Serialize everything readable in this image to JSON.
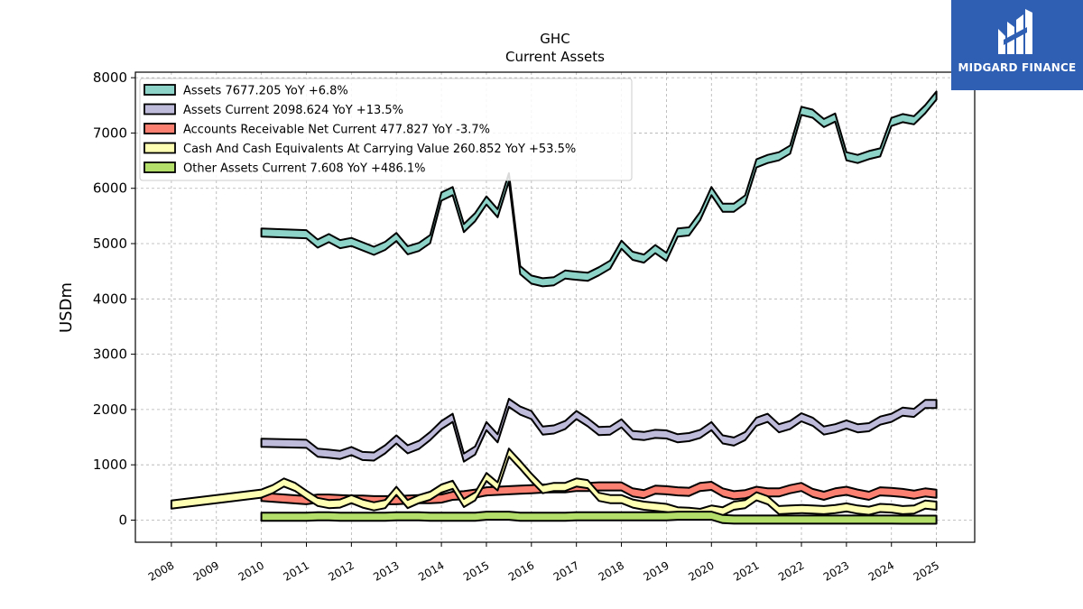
{
  "brand": {
    "name": "MIDGARD FINANCE",
    "logo_icon": "midgard-logo-icon",
    "color": "#2f5fb3"
  },
  "chart_data": {
    "type": "area",
    "title": "GHC",
    "subtitle": "Current  Assets",
    "ylabel": "USDm",
    "xlabel": "",
    "ylim": [
      -400,
      8100
    ],
    "xlim": [
      2007.2,
      2025.85
    ],
    "yticks": [
      0,
      1000,
      2000,
      3000,
      4000,
      5000,
      6000,
      7000,
      8000
    ],
    "xticks": [
      2008,
      2009,
      2010,
      2011,
      2012,
      2013,
      2014,
      2015,
      2016,
      2017,
      2018,
      2019,
      2020,
      2021,
      2022,
      2023,
      2024,
      2025
    ],
    "grid": true,
    "legend_position": "top-left",
    "series": [
      {
        "name": "Assets",
        "legend": "Assets  7677.205 YoY +6.8%",
        "color": "#8dd3c7",
        "points": [
          [
            2010.0,
            5200
          ],
          [
            2011.0,
            5170
          ],
          [
            2011.25,
            5000
          ],
          [
            2011.5,
            5100
          ],
          [
            2011.75,
            4990
          ],
          [
            2012.0,
            5030
          ],
          [
            2012.25,
            4950
          ],
          [
            2012.5,
            4870
          ],
          [
            2012.75,
            4960
          ],
          [
            2013.0,
            5120
          ],
          [
            2013.25,
            4880
          ],
          [
            2013.5,
            4940
          ],
          [
            2013.75,
            5080
          ],
          [
            2014.0,
            5850
          ],
          [
            2014.25,
            5950
          ],
          [
            2014.5,
            5280
          ],
          [
            2014.75,
            5480
          ],
          [
            2015.0,
            5780
          ],
          [
            2015.25,
            5550
          ],
          [
            2015.5,
            6200
          ],
          [
            2015.75,
            4520
          ],
          [
            2016.0,
            4350
          ],
          [
            2016.25,
            4300
          ],
          [
            2016.5,
            4320
          ],
          [
            2016.75,
            4440
          ],
          [
            2017.0,
            4420
          ],
          [
            2017.25,
            4400
          ],
          [
            2017.5,
            4500
          ],
          [
            2017.75,
            4620
          ],
          [
            2018.0,
            4980
          ],
          [
            2018.25,
            4780
          ],
          [
            2018.5,
            4730
          ],
          [
            2018.75,
            4900
          ],
          [
            2019.0,
            4760
          ],
          [
            2019.25,
            5200
          ],
          [
            2019.5,
            5220
          ],
          [
            2019.75,
            5500
          ],
          [
            2020.0,
            5950
          ],
          [
            2020.25,
            5650
          ],
          [
            2020.5,
            5650
          ],
          [
            2020.75,
            5800
          ],
          [
            2021.0,
            6450
          ],
          [
            2021.25,
            6530
          ],
          [
            2021.5,
            6580
          ],
          [
            2021.75,
            6700
          ],
          [
            2022.0,
            7400
          ],
          [
            2022.25,
            7350
          ],
          [
            2022.5,
            7180
          ],
          [
            2022.75,
            7280
          ],
          [
            2023.0,
            6580
          ],
          [
            2023.25,
            6530
          ],
          [
            2023.5,
            6600
          ],
          [
            2023.75,
            6650
          ],
          [
            2024.0,
            7200
          ],
          [
            2024.25,
            7270
          ],
          [
            2024.5,
            7230
          ],
          [
            2024.75,
            7430
          ],
          [
            2025.0,
            7677
          ]
        ]
      },
      {
        "name": "Assets Current",
        "legend": "Assets Current  2098.624 YoY +13.5%",
        "color": "#bebada",
        "points": [
          [
            2010.0,
            1400
          ],
          [
            2011.0,
            1380
          ],
          [
            2011.25,
            1220
          ],
          [
            2011.5,
            1200
          ],
          [
            2011.75,
            1180
          ],
          [
            2012.0,
            1250
          ],
          [
            2012.25,
            1160
          ],
          [
            2012.5,
            1150
          ],
          [
            2012.75,
            1280
          ],
          [
            2013.0,
            1460
          ],
          [
            2013.25,
            1280
          ],
          [
            2013.5,
            1360
          ],
          [
            2013.75,
            1520
          ],
          [
            2014.0,
            1720
          ],
          [
            2014.25,
            1850
          ],
          [
            2014.5,
            1130
          ],
          [
            2014.75,
            1260
          ],
          [
            2015.0,
            1700
          ],
          [
            2015.25,
            1480
          ],
          [
            2015.5,
            2120
          ],
          [
            2015.75,
            1980
          ],
          [
            2016.0,
            1900
          ],
          [
            2016.25,
            1620
          ],
          [
            2016.5,
            1640
          ],
          [
            2016.75,
            1720
          ],
          [
            2017.0,
            1900
          ],
          [
            2017.25,
            1770
          ],
          [
            2017.5,
            1610
          ],
          [
            2017.75,
            1620
          ],
          [
            2018.0,
            1750
          ],
          [
            2018.25,
            1540
          ],
          [
            2018.5,
            1520
          ],
          [
            2018.75,
            1560
          ],
          [
            2019.0,
            1550
          ],
          [
            2019.25,
            1480
          ],
          [
            2019.5,
            1500
          ],
          [
            2019.75,
            1560
          ],
          [
            2020.0,
            1700
          ],
          [
            2020.25,
            1460
          ],
          [
            2020.5,
            1420
          ],
          [
            2020.75,
            1520
          ],
          [
            2021.0,
            1780
          ],
          [
            2021.25,
            1850
          ],
          [
            2021.5,
            1660
          ],
          [
            2021.75,
            1720
          ],
          [
            2022.0,
            1860
          ],
          [
            2022.25,
            1780
          ],
          [
            2022.5,
            1620
          ],
          [
            2022.75,
            1660
          ],
          [
            2023.0,
            1730
          ],
          [
            2023.25,
            1660
          ],
          [
            2023.5,
            1680
          ],
          [
            2023.75,
            1800
          ],
          [
            2024.0,
            1850
          ],
          [
            2024.25,
            1960
          ],
          [
            2024.5,
            1940
          ],
          [
            2024.75,
            2100
          ],
          [
            2025.0,
            2099
          ]
        ]
      },
      {
        "name": "Accounts Receivable Net Current",
        "legend": "Accounts Receivable Net Current  477.827 YoY -3.7%",
        "color": "#fb8072",
        "points": [
          [
            2010.0,
            420
          ],
          [
            2011.0,
            360
          ],
          [
            2011.25,
            390
          ],
          [
            2011.5,
            390
          ],
          [
            2011.75,
            380
          ],
          [
            2012.0,
            370
          ],
          [
            2012.25,
            370
          ],
          [
            2012.5,
            360
          ],
          [
            2012.75,
            360
          ],
          [
            2013.0,
            360
          ],
          [
            2013.25,
            370
          ],
          [
            2013.5,
            380
          ],
          [
            2013.75,
            380
          ],
          [
            2014.0,
            390
          ],
          [
            2014.25,
            440
          ],
          [
            2014.5,
            450
          ],
          [
            2014.75,
            480
          ],
          [
            2015.0,
            520
          ],
          [
            2015.25,
            530
          ],
          [
            2015.5,
            540
          ],
          [
            2015.75,
            550
          ],
          [
            2016.0,
            560
          ],
          [
            2016.25,
            570
          ],
          [
            2016.5,
            575
          ],
          [
            2016.75,
            575
          ],
          [
            2017.0,
            600
          ],
          [
            2017.25,
            600
          ],
          [
            2017.5,
            610
          ],
          [
            2017.75,
            610
          ],
          [
            2018.0,
            610
          ],
          [
            2018.25,
            500
          ],
          [
            2018.5,
            470
          ],
          [
            2018.75,
            550
          ],
          [
            2019.0,
            540
          ],
          [
            2019.25,
            520
          ],
          [
            2019.5,
            510
          ],
          [
            2019.75,
            600
          ],
          [
            2020.0,
            620
          ],
          [
            2020.25,
            500
          ],
          [
            2020.5,
            450
          ],
          [
            2020.75,
            470
          ],
          [
            2021.0,
            530
          ],
          [
            2021.25,
            500
          ],
          [
            2021.5,
            500
          ],
          [
            2021.75,
            560
          ],
          [
            2022.0,
            600
          ],
          [
            2022.25,
            490
          ],
          [
            2022.5,
            440
          ],
          [
            2022.75,
            500
          ],
          [
            2023.0,
            530
          ],
          [
            2023.25,
            480
          ],
          [
            2023.5,
            440
          ],
          [
            2023.75,
            520
          ],
          [
            2024.0,
            510
          ],
          [
            2024.25,
            490
          ],
          [
            2024.5,
            460
          ],
          [
            2024.75,
            500
          ],
          [
            2025.0,
            478
          ]
        ]
      },
      {
        "name": "Cash And Cash Equivalents At Carrying Value",
        "legend": "Cash And Cash Equivalents At Carrying Value  260.852 YoY +53.5%",
        "color": "#ffffb3",
        "points": [
          [
            2008.0,
            280
          ],
          [
            2010.0,
            480
          ],
          [
            2010.25,
            560
          ],
          [
            2010.5,
            680
          ],
          [
            2010.75,
            600
          ],
          [
            2011.0,
            460
          ],
          [
            2011.25,
            330
          ],
          [
            2011.5,
            290
          ],
          [
            2011.75,
            300
          ],
          [
            2012.0,
            380
          ],
          [
            2012.25,
            300
          ],
          [
            2012.5,
            250
          ],
          [
            2012.75,
            290
          ],
          [
            2013.0,
            530
          ],
          [
            2013.25,
            290
          ],
          [
            2013.5,
            380
          ],
          [
            2013.75,
            440
          ],
          [
            2014.0,
            570
          ],
          [
            2014.25,
            640
          ],
          [
            2014.5,
            310
          ],
          [
            2014.75,
            430
          ],
          [
            2015.0,
            780
          ],
          [
            2015.25,
            610
          ],
          [
            2015.5,
            1220
          ],
          [
            2015.75,
            1000
          ],
          [
            2016.0,
            770
          ],
          [
            2016.25,
            560
          ],
          [
            2016.5,
            600
          ],
          [
            2016.75,
            600
          ],
          [
            2017.0,
            680
          ],
          [
            2017.25,
            650
          ],
          [
            2017.5,
            420
          ],
          [
            2017.75,
            380
          ],
          [
            2018.0,
            380
          ],
          [
            2018.25,
            300
          ],
          [
            2018.5,
            260
          ],
          [
            2018.75,
            240
          ],
          [
            2019.0,
            220
          ],
          [
            2019.25,
            160
          ],
          [
            2019.5,
            150
          ],
          [
            2019.75,
            130
          ],
          [
            2020.0,
            190
          ],
          [
            2020.25,
            160
          ],
          [
            2020.5,
            260
          ],
          [
            2020.75,
            290
          ],
          [
            2021.0,
            430
          ],
          [
            2021.25,
            360
          ],
          [
            2021.5,
            180
          ],
          [
            2021.75,
            190
          ],
          [
            2022.0,
            200
          ],
          [
            2022.25,
            190
          ],
          [
            2022.5,
            180
          ],
          [
            2022.75,
            200
          ],
          [
            2023.0,
            230
          ],
          [
            2023.25,
            190
          ],
          [
            2023.5,
            170
          ],
          [
            2023.75,
            220
          ],
          [
            2024.0,
            210
          ],
          [
            2024.25,
            180
          ],
          [
            2024.5,
            190
          ],
          [
            2024.75,
            280
          ],
          [
            2025.0,
            261
          ]
        ]
      },
      {
        "name": "Other Assets Current",
        "legend": "Other Assets Current  7.608 YoY +486.1%",
        "color": "#b3de69",
        "points": [
          [
            2010.0,
            60
          ],
          [
            2011.0,
            60
          ],
          [
            2011.25,
            70
          ],
          [
            2011.5,
            70
          ],
          [
            2011.75,
            60
          ],
          [
            2012.0,
            60
          ],
          [
            2012.25,
            60
          ],
          [
            2012.5,
            60
          ],
          [
            2012.75,
            60
          ],
          [
            2013.0,
            70
          ],
          [
            2013.25,
            70
          ],
          [
            2013.5,
            70
          ],
          [
            2013.75,
            60
          ],
          [
            2014.0,
            60
          ],
          [
            2014.25,
            60
          ],
          [
            2014.5,
            60
          ],
          [
            2014.75,
            60
          ],
          [
            2015.0,
            80
          ],
          [
            2015.25,
            80
          ],
          [
            2015.5,
            80
          ],
          [
            2015.75,
            60
          ],
          [
            2016.0,
            60
          ],
          [
            2016.25,
            60
          ],
          [
            2016.5,
            60
          ],
          [
            2016.75,
            60
          ],
          [
            2017.0,
            70
          ],
          [
            2017.25,
            70
          ],
          [
            2017.5,
            70
          ],
          [
            2017.75,
            70
          ],
          [
            2018.0,
            70
          ],
          [
            2018.25,
            70
          ],
          [
            2018.5,
            70
          ],
          [
            2018.75,
            70
          ],
          [
            2019.0,
            70
          ],
          [
            2019.25,
            80
          ],
          [
            2019.5,
            80
          ],
          [
            2019.75,
            80
          ],
          [
            2020.0,
            80
          ],
          [
            2020.25,
            20
          ],
          [
            2020.5,
            10
          ],
          [
            2020.75,
            10
          ],
          [
            2021.0,
            10
          ],
          [
            2021.25,
            10
          ],
          [
            2021.5,
            10
          ],
          [
            2021.75,
            10
          ],
          [
            2022.0,
            10
          ],
          [
            2022.25,
            10
          ],
          [
            2022.5,
            10
          ],
          [
            2022.75,
            10
          ],
          [
            2023.0,
            10
          ],
          [
            2023.25,
            10
          ],
          [
            2023.5,
            10
          ],
          [
            2023.75,
            10
          ],
          [
            2024.0,
            10
          ],
          [
            2024.25,
            8
          ],
          [
            2024.5,
            8
          ],
          [
            2024.75,
            8
          ],
          [
            2025.0,
            8
          ]
        ]
      }
    ]
  }
}
